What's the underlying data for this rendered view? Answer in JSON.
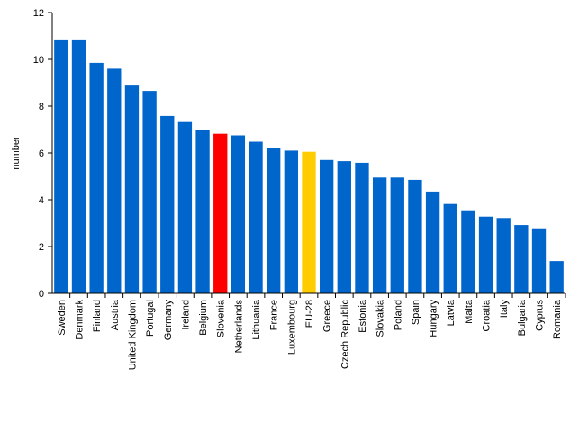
{
  "chart_data": {
    "type": "bar",
    "title": "",
    "xlabel": "",
    "ylabel": "number",
    "ylim": [
      0,
      12
    ],
    "yticks": [
      0,
      2,
      4,
      6,
      8,
      10,
      12
    ],
    "grid": false,
    "legend": "none",
    "categories": [
      "Sweden",
      "Denmark",
      "Finland",
      "Austria",
      "United Kingdom",
      "Portugal",
      "Germany",
      "Ireland",
      "Belgium",
      "Slovenia",
      "Netherlands",
      "Lithuania",
      "France",
      "Luxembourg",
      "EU-28",
      "Greece",
      "Czech Republic",
      "Estonia",
      "Slovakia",
      "Poland",
      "Spain",
      "Hungary",
      "Latvia",
      "Malta",
      "Croatia",
      "Italy",
      "Bulgaria",
      "Cyprus",
      "Romania"
    ],
    "values": [
      10.85,
      10.85,
      9.85,
      9.6,
      8.88,
      8.65,
      7.58,
      7.32,
      6.98,
      6.82,
      6.75,
      6.48,
      6.23,
      6.1,
      6.05,
      5.7,
      5.65,
      5.58,
      4.95,
      4.95,
      4.85,
      4.35,
      3.82,
      3.55,
      3.28,
      3.22,
      2.92,
      2.78,
      1.38
    ],
    "colors": {
      "default": "#0066cc",
      "Slovenia": "#ff0000",
      "EU-28": "#ffcc00"
    }
  }
}
